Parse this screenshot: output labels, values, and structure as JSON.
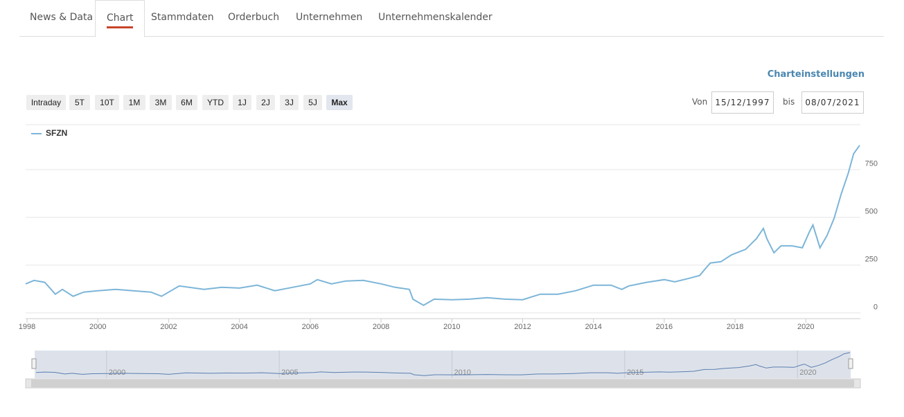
{
  "tabs": [
    "News & Data",
    "Chart",
    "Stammdaten",
    "Orderbuch",
    "Unternehmen",
    "Unternehmenskalender"
  ],
  "active_tab": 1,
  "settings_link": "Charteinstellungen",
  "range_buttons": [
    "Intraday",
    "5T",
    "10T",
    "1M",
    "3M",
    "6M",
    "YTD",
    "1J",
    "2J",
    "3J",
    "5J",
    "Max"
  ],
  "active_range": 11,
  "date_from_label": "Von",
  "date_from": "15/12/1997",
  "date_to_label": "bis",
  "date_to": "08/07/2021",
  "chart_data": {
    "type": "line",
    "x": [
      1997.96,
      1998.2,
      1998.5,
      1998.8,
      1999.0,
      1999.3,
      1999.6,
      2000.0,
      2000.5,
      2001.0,
      2001.5,
      2001.8,
      2002.3,
      2003.0,
      2003.5,
      2004.0,
      2004.5,
      2005.0,
      2005.5,
      2006.0,
      2006.2,
      2006.6,
      2007.0,
      2007.5,
      2008.0,
      2008.4,
      2008.8,
      2008.9,
      2009.2,
      2009.5,
      2010.0,
      2010.5,
      2011.0,
      2011.5,
      2012.0,
      2012.5,
      2013.0,
      2013.5,
      2014.0,
      2014.5,
      2014.8,
      2015.0,
      2015.5,
      2016.0,
      2016.3,
      2016.7,
      2017.0,
      2017.3,
      2017.6,
      2017.9,
      2018.3,
      2018.6,
      2018.8,
      2018.9,
      2019.1,
      2019.3,
      2019.6,
      2019.9,
      2020.1,
      2020.2,
      2020.4,
      2020.6,
      2020.8,
      2021.0,
      2021.2,
      2021.35,
      2021.52
    ],
    "series": [
      {
        "name": "SFZN",
        "color": "#7cb5d8",
        "values": [
          152,
          170,
          160,
          98,
          123,
          87,
          109,
          116,
          123,
          116,
          109,
          87,
          141,
          123,
          134,
          130,
          145,
          116,
          134,
          152,
          174,
          152,
          167,
          170,
          152,
          134,
          123,
          72,
          40,
          72,
          69,
          72,
          80,
          72,
          69,
          98,
          98,
          116,
          145,
          145,
          123,
          141,
          160,
          174,
          163,
          181,
          196,
          261,
          268,
          304,
          333,
          388,
          442,
          388,
          315,
          351,
          351,
          341,
          424,
          460,
          341,
          406,
          496,
          623,
          732,
          833,
          877
        ]
      }
    ],
    "xlim": [
      1997.96,
      2021.54
    ],
    "ylim": [
      -30,
      985
    ],
    "xticks": [
      1998,
      2000,
      2002,
      2004,
      2006,
      2008,
      2010,
      2012,
      2014,
      2016,
      2018,
      2020
    ],
    "yticks": [
      0,
      250,
      500,
      750
    ],
    "grid": true,
    "navigator": {
      "xticks": [
        2000,
        2005,
        2010,
        2015,
        2020
      ]
    }
  }
}
